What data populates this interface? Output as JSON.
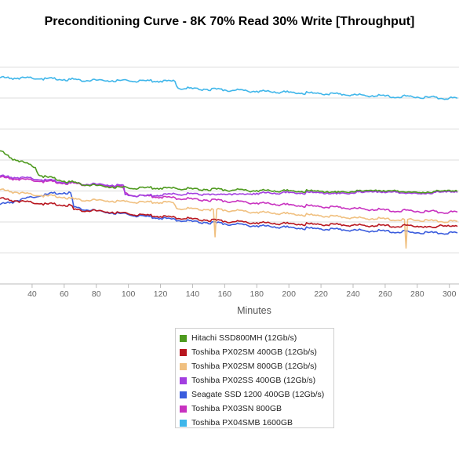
{
  "chart_data": {
    "type": "line",
    "title": "Preconditioning Curve - 8K 70% Read 30% Write [Throughput]",
    "xlabel": "Minutes",
    "ylabel": "",
    "xlim": [
      20,
      305
    ],
    "x_ticks": [
      40,
      60,
      80,
      100,
      120,
      140,
      160,
      180,
      200,
      220,
      240,
      260,
      280,
      300
    ],
    "y_tick_labels": [],
    "grid": true,
    "legend_position": "bottom",
    "series": [
      {
        "name": "Hitachi SSD800MH (12Gb/s)",
        "color": "#4e9a1f",
        "points": [
          [
            20,
            0.537
          ],
          [
            27,
            0.508
          ],
          [
            35,
            0.49
          ],
          [
            40,
            0.475
          ],
          [
            42,
            0.47
          ],
          [
            44,
            0.44
          ],
          [
            50,
            0.43
          ],
          [
            60,
            0.415
          ],
          [
            70,
            0.405
          ],
          [
            80,
            0.397
          ],
          [
            90,
            0.392
          ],
          [
            96,
            0.39
          ],
          [
            100,
            0.387
          ],
          [
            110,
            0.388
          ],
          [
            120,
            0.386
          ],
          [
            130,
            0.385
          ],
          [
            140,
            0.383
          ],
          [
            160,
            0.38
          ],
          [
            180,
            0.377
          ],
          [
            200,
            0.375
          ],
          [
            220,
            0.374
          ],
          [
            260,
            0.373
          ],
          [
            305,
            0.373
          ]
        ]
      },
      {
        "name": "Toshiba PX02SM 400GB (12Gb/s)",
        "color": "#b8161f",
        "points": [
          [
            20,
            0.345
          ],
          [
            30,
            0.335
          ],
          [
            40,
            0.328
          ],
          [
            50,
            0.322
          ],
          [
            60,
            0.318
          ],
          [
            64,
            0.318
          ],
          [
            66,
            0.3
          ],
          [
            80,
            0.295
          ],
          [
            90,
            0.29
          ],
          [
            100,
            0.283
          ],
          [
            120,
            0.272
          ],
          [
            140,
            0.262
          ],
          [
            160,
            0.253
          ],
          [
            180,
            0.247
          ],
          [
            200,
            0.243
          ],
          [
            220,
            0.24
          ],
          [
            240,
            0.237
          ],
          [
            260,
            0.235
          ],
          [
            280,
            0.233
          ],
          [
            305,
            0.232
          ]
        ]
      },
      {
        "name": "Toshiba PX02SM 800GB (12Gb/s)",
        "color": "#f0c080",
        "points": [
          [
            20,
            0.38
          ],
          [
            30,
            0.37
          ],
          [
            40,
            0.36
          ],
          [
            50,
            0.355
          ],
          [
            60,
            0.35
          ],
          [
            64,
            0.345
          ],
          [
            66,
            0.342
          ],
          [
            80,
            0.338
          ],
          [
            98,
            0.333
          ],
          [
            100,
            0.332
          ],
          [
            110,
            0.33
          ],
          [
            128,
            0.328
          ],
          [
            130,
            0.305
          ],
          [
            150,
            0.3
          ],
          [
            153,
            0.3
          ],
          [
            154,
            0.19
          ],
          [
            155,
            0.3
          ],
          [
            160,
            0.298
          ],
          [
            180,
            0.29
          ],
          [
            200,
            0.283
          ],
          [
            220,
            0.275
          ],
          [
            240,
            0.267
          ],
          [
            260,
            0.262
          ],
          [
            272,
            0.26
          ],
          [
            273,
            0.145
          ],
          [
            274,
            0.26
          ],
          [
            290,
            0.255
          ],
          [
            305,
            0.252
          ]
        ]
      },
      {
        "name": "Toshiba PX02SS 400GB (12Gb/s)",
        "color": "#a23ee0",
        "points": [
          [
            20,
            0.435
          ],
          [
            40,
            0.425
          ],
          [
            60,
            0.41
          ],
          [
            80,
            0.402
          ],
          [
            97,
            0.398
          ],
          [
            98,
            0.36
          ],
          [
            110,
            0.355
          ],
          [
            130,
            0.362
          ],
          [
            150,
            0.363
          ],
          [
            180,
            0.366
          ],
          [
            200,
            0.368
          ],
          [
            220,
            0.368
          ],
          [
            260,
            0.368
          ],
          [
            305,
            0.369
          ]
        ]
      },
      {
        "name": "Seagate SSD 1200 400GB (12Gb/s)",
        "color": "#3a5cdd",
        "points": [
          [
            20,
            0.32
          ],
          [
            30,
            0.335
          ],
          [
            40,
            0.35
          ],
          [
            50,
            0.362
          ],
          [
            60,
            0.368
          ],
          [
            64,
            0.368
          ],
          [
            66,
            0.31
          ],
          [
            80,
            0.295
          ],
          [
            100,
            0.28
          ],
          [
            120,
            0.265
          ],
          [
            140,
            0.252
          ],
          [
            160,
            0.243
          ],
          [
            180,
            0.235
          ],
          [
            200,
            0.228
          ],
          [
            220,
            0.222
          ],
          [
            240,
            0.217
          ],
          [
            260,
            0.213
          ],
          [
            275,
            0.21
          ],
          [
            276,
            0.208
          ],
          [
            290,
            0.207
          ],
          [
            305,
            0.206
          ]
        ]
      },
      {
        "name": "Toshiba PX03SN 800GB",
        "color": "#c832c0",
        "points": [
          [
            20,
            0.43
          ],
          [
            40,
            0.418
          ],
          [
            60,
            0.407
          ],
          [
            80,
            0.4
          ],
          [
            96,
            0.395
          ],
          [
            98,
            0.368
          ],
          [
            100,
            0.36
          ],
          [
            120,
            0.35
          ],
          [
            140,
            0.342
          ],
          [
            160,
            0.335
          ],
          [
            180,
            0.327
          ],
          [
            200,
            0.319
          ],
          [
            220,
            0.312
          ],
          [
            240,
            0.305
          ],
          [
            260,
            0.298
          ],
          [
            280,
            0.293
          ],
          [
            300,
            0.29
          ],
          [
            305,
            0.29
          ]
        ]
      },
      {
        "name": "Toshiba PX04SMB 1600GB",
        "color": "#3fb6ea",
        "points": [
          [
            20,
            0.832
          ],
          [
            40,
            0.83
          ],
          [
            60,
            0.825
          ],
          [
            80,
            0.822
          ],
          [
            100,
            0.82
          ],
          [
            120,
            0.818
          ],
          [
            129,
            0.817
          ],
          [
            131,
            0.79
          ],
          [
            140,
            0.788
          ],
          [
            160,
            0.783
          ],
          [
            180,
            0.778
          ],
          [
            200,
            0.773
          ],
          [
            220,
            0.768
          ],
          [
            240,
            0.763
          ],
          [
            260,
            0.758
          ],
          [
            280,
            0.754
          ],
          [
            300,
            0.75
          ],
          [
            305,
            0.749
          ]
        ]
      }
    ]
  }
}
